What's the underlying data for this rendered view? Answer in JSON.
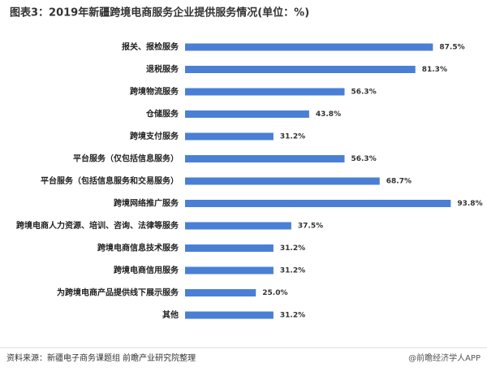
{
  "chart_data": {
    "type": "hbar",
    "title": "图表3：2019年新疆跨境电商服务企业提供服务情况(单位：%)",
    "categories": [
      "报关、报检服务",
      "退税服务",
      "跨境物流服务",
      "仓储服务",
      "跨境支付服务",
      "平台服务（仅包括信息服务）",
      "平台服务（包括信息服务和交易服务）",
      "跨境网络推广服务",
      "跨境电商人力资源、培训、咨询、法律等服务",
      "跨境电商信息技术服务",
      "跨境电商信用服务",
      "为跨境电商产品提供线下展示服务",
      "其他"
    ],
    "values": [
      87.5,
      81.3,
      56.3,
      43.8,
      31.2,
      56.3,
      68.7,
      93.8,
      37.5,
      31.2,
      31.2,
      25.0,
      31.2
    ],
    "value_labels": [
      "87.5%",
      "81.3%",
      "56.3%",
      "43.8%",
      "31.2%",
      "56.3%",
      "68.7%",
      "93.8%",
      "37.5%",
      "31.2%",
      "31.2%",
      "25.0%",
      "31.2%"
    ],
    "color": "#4a7fd6",
    "source": "资料来源：新疆电子商务课题组 前瞻产业研究院整理",
    "footer": "@前瞻经济学人APP"
  }
}
